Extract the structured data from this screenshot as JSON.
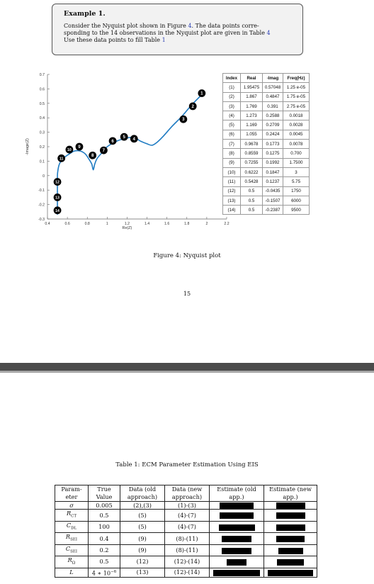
{
  "example": {
    "title": "Example 1.",
    "line1_a": "Consider the Nyquist plot shown in Figure ",
    "line1_ref": "4",
    "line1_b": ". The data points corre-",
    "line2": "sponding to the 14 observations in the Nyquist plot are given in Table ",
    "line2_ref": "4",
    "line3": "Use these data points to fill Table ",
    "line3_ref": "1"
  },
  "figure": {
    "caption": "Figure 4: Nyquist plot",
    "page_number": "15"
  },
  "chart_data": {
    "type": "line",
    "xlabel": "Re(Z)",
    "ylabel": "-Image(Z)",
    "xlim": [
      0.4,
      2.2
    ],
    "ylim": [
      -0.3,
      0.7
    ],
    "x_ticks": [
      "0.4",
      "0.6",
      "0.8",
      "1",
      "1.2",
      "1.4",
      "1.6",
      "1.8",
      "2",
      "2.2"
    ],
    "y_ticks": [
      "0.7",
      "0.6",
      "0.5",
      "0.4",
      "0.3",
      "0.2",
      "0.1",
      "0",
      "-0.1",
      "-0.2",
      "-0.3"
    ],
    "curve_color": "#1f7bc2",
    "curve": [
      [
        0.5,
        -0.27
      ],
      [
        0.5,
        -0.2
      ],
      [
        0.5,
        -0.12
      ],
      [
        0.5,
        -0.04
      ],
      [
        0.502,
        0.02
      ],
      [
        0.52,
        0.08
      ],
      [
        0.56,
        0.12
      ],
      [
        0.62,
        0.15
      ],
      [
        0.67,
        0.17
      ],
      [
        0.73,
        0.17
      ],
      [
        0.78,
        0.15
      ],
      [
        0.82,
        0.11
      ],
      [
        0.845,
        0.08
      ],
      [
        0.86,
        0.04
      ],
      [
        0.875,
        0.08
      ],
      [
        0.9,
        0.12
      ],
      [
        0.95,
        0.16
      ],
      [
        1.0,
        0.2
      ],
      [
        1.1,
        0.24
      ],
      [
        1.2,
        0.26
      ],
      [
        1.27,
        0.265
      ],
      [
        1.33,
        0.24
      ],
      [
        1.4,
        0.22
      ],
      [
        1.45,
        0.21
      ],
      [
        1.5,
        0.23
      ],
      [
        1.56,
        0.27
      ],
      [
        1.65,
        0.34
      ],
      [
        1.75,
        0.41
      ],
      [
        1.85,
        0.49
      ],
      [
        1.95,
        0.56
      ],
      [
        1.98,
        0.58
      ]
    ],
    "points": [
      {
        "label": "1",
        "x": 1.95,
        "y": 0.57
      },
      {
        "label": "2",
        "x": 1.86,
        "y": 0.48
      },
      {
        "label": "3",
        "x": 1.765,
        "y": 0.39
      },
      {
        "label": "4",
        "x": 1.27,
        "y": 0.255
      },
      {
        "label": "5",
        "x": 1.17,
        "y": 0.268
      },
      {
        "label": "6",
        "x": 1.055,
        "y": 0.24
      },
      {
        "label": "7",
        "x": 0.965,
        "y": 0.175
      },
      {
        "label": "8",
        "x": 0.853,
        "y": 0.14
      },
      {
        "label": "9",
        "x": 0.72,
        "y": 0.2
      },
      {
        "label": "10",
        "x": 0.62,
        "y": 0.18
      },
      {
        "label": "11",
        "x": 0.54,
        "y": 0.12
      },
      {
        "label": "12",
        "x": 0.5,
        "y": -0.043
      },
      {
        "label": "13",
        "x": 0.5,
        "y": -0.15
      },
      {
        "label": "14",
        "x": 0.5,
        "y": -0.24
      }
    ]
  },
  "observations_table": {
    "headers": [
      "Index",
      "Real",
      "-Imag",
      "Freq(Hz)"
    ],
    "rows": [
      [
        "(1)",
        "1.95475",
        "0.57048",
        "1.25 e-05"
      ],
      [
        "(2)",
        "1.867",
        "0.4847",
        "1.75 e-05"
      ],
      [
        "(3)",
        "1.769",
        "0.391",
        "2.75 e-05"
      ],
      [
        "(4)",
        "1.273",
        "0.2588",
        "0.0018"
      ],
      [
        "(5)",
        "1.169",
        "0.2709",
        "0.0028"
      ],
      [
        "(6)",
        "1.055",
        "0.2424",
        "0.0045"
      ],
      [
        "(7)",
        "0.9678",
        "0.1773",
        "0.0078"
      ],
      [
        "(8)",
        "0.8559",
        "0.1275",
        "0.700"
      ],
      [
        "(9)",
        "0.7255",
        "0.1992",
        "1.7500"
      ],
      [
        "(10)",
        "0.6222",
        "0.1847",
        "3"
      ],
      [
        "(11)",
        "0.5428",
        "0.1237",
        "5.75"
      ],
      [
        "(12)",
        "0.5",
        "-0.0435",
        "1750"
      ],
      [
        "(13)",
        "0.5",
        "-0.1507",
        "6000"
      ],
      [
        "(14)",
        "0.5",
        "-0.2387",
        "9500"
      ]
    ]
  },
  "ecm_table": {
    "caption": "Table 1: ECM Parameter Estimation Using EIS",
    "headers": [
      [
        "Param-",
        "eter"
      ],
      [
        "True",
        "Value"
      ],
      [
        "Data (old",
        "approach)"
      ],
      [
        "Data (new",
        "approach)"
      ],
      [
        "Estimate (old",
        "app.)"
      ],
      [
        "Estimate (new",
        "app.)"
      ]
    ],
    "rows": [
      {
        "param": "σ",
        "sub": "",
        "true": "0.005",
        "sup": "",
        "old": "(2),(3)",
        "new": "(1)-(3)",
        "est_old_fill": 0.72,
        "est_new_fill": 0.64
      },
      {
        "param": "R",
        "sub": "CT",
        "true": "0.5",
        "sup": "",
        "old": "(5)",
        "new": "(4)-(7)",
        "est_old_fill": 0.72,
        "est_new_fill": 0.64
      },
      {
        "param": "C",
        "sub": "DL",
        "true": "100",
        "sup": "",
        "old": "(5)",
        "new": "(4)-(7)",
        "est_old_fill": 0.78,
        "est_new_fill": 0.64
      },
      {
        "param": "R",
        "sub": "SEI",
        "true": "0.4",
        "sup": "",
        "old": "(9)",
        "new": "(8)-(11)",
        "est_old_fill": 0.64,
        "est_new_fill": 0.62
      },
      {
        "param": "C",
        "sub": "SEI",
        "true": "0.2",
        "sup": "",
        "old": "(9)",
        "new": "(8)-(11)",
        "est_old_fill": 0.64,
        "est_new_fill": 0.54
      },
      {
        "param": "R",
        "sub": "Ω",
        "true": "0.5",
        "sup": "",
        "old": "(12)",
        "new": "(12)-(14)",
        "est_old_fill": 0.42,
        "est_new_fill": 0.6
      },
      {
        "param": "L",
        "sub": "",
        "true": "4 ∗ 10",
        "sup": "−6",
        "old": "(13)",
        "new": "(12)-(14)",
        "est_old_fill": 1.0,
        "est_new_fill": 1.0
      }
    ]
  }
}
